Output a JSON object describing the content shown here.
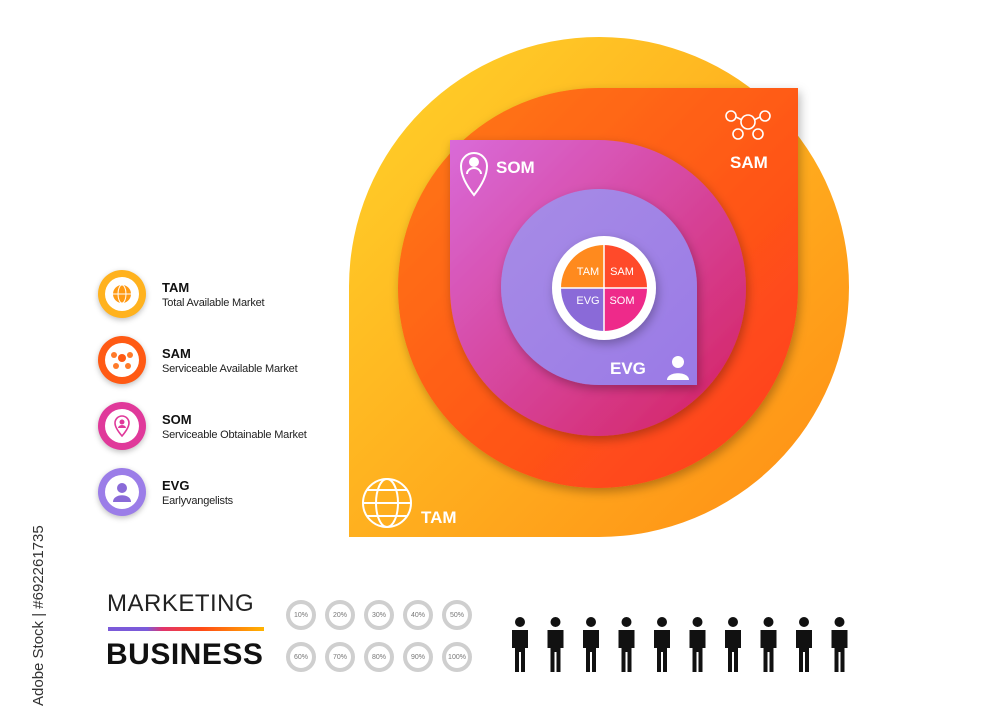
{
  "diagram": {
    "segments": [
      {
        "code": "TAM",
        "label": "Total Available Market",
        "color": "#ffb21e",
        "icon": "globe-people-icon"
      },
      {
        "code": "SAM",
        "label": "Serviceable Available Market",
        "color": "#ff5a14",
        "icon": "people-network-icon"
      },
      {
        "code": "SOM",
        "label": "Serviceable Obtainable Market",
        "color": "#e0399a",
        "icon": "location-person-icon"
      },
      {
        "code": "EVG",
        "label": "Earlyvangelists",
        "color": "#9b7de8",
        "icon": "person-icon"
      }
    ],
    "center_pie": [
      {
        "label": "TAM",
        "color": "#ff8a1e"
      },
      {
        "label": "SAM",
        "color": "#ff4a2a"
      },
      {
        "label": "EVG",
        "color": "#8a6ad8"
      },
      {
        "label": "SOM",
        "color": "#ee2a8a"
      }
    ]
  },
  "footer": {
    "title_top": "MARKETING",
    "title_bottom": "BUSINESS",
    "percent_labels_top": [
      "10%",
      "20%",
      "30%",
      "40%",
      "50%"
    ],
    "percent_labels_bottom": [
      "60%",
      "70%",
      "80%",
      "90%",
      "100%"
    ],
    "people_count": 10
  },
  "watermark": "Adobe Stock | #692261735"
}
